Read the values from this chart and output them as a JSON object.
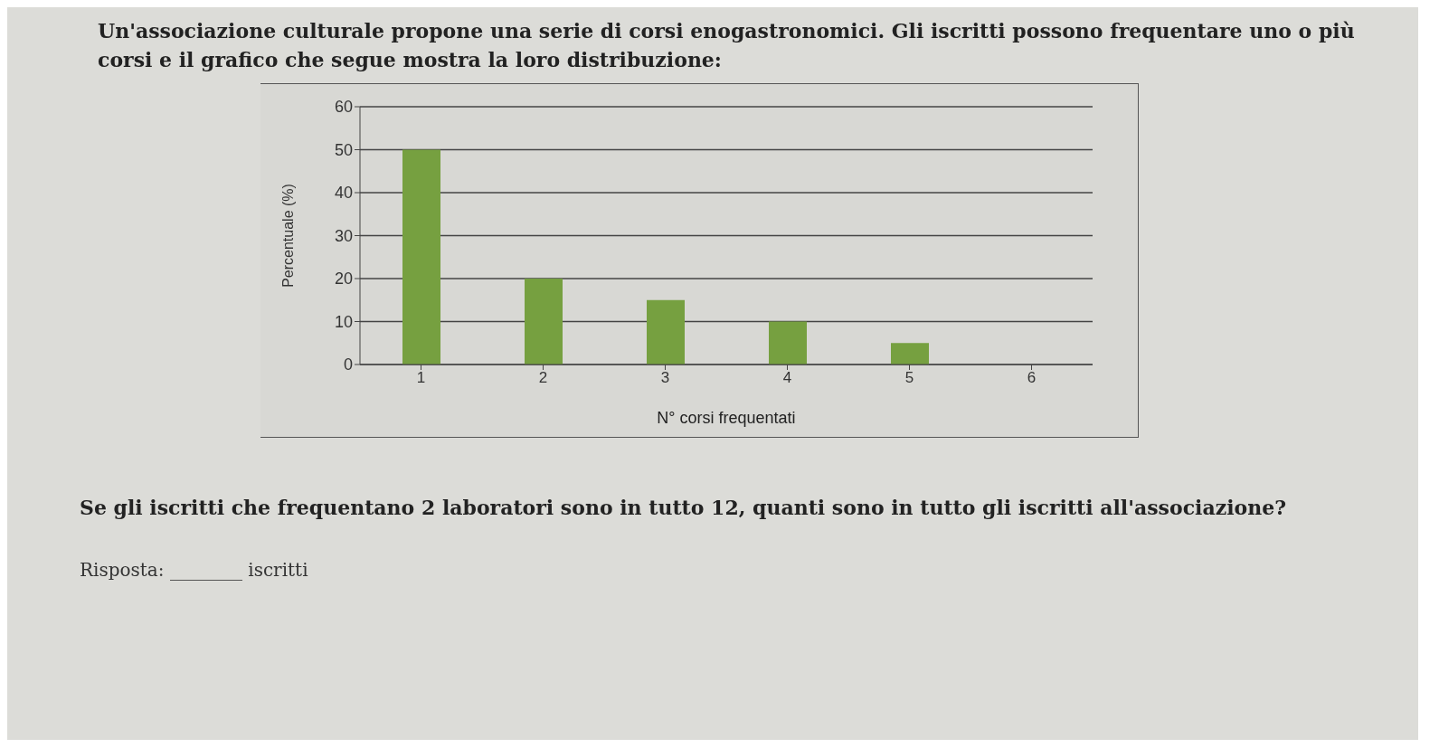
{
  "chart_data": {
    "type": "bar",
    "title": "Un'associazione culturale propone una serie di corsi enogastronomici. Gli iscritti possono frequentare uno o più corsi e il grafico che segue mostra la loro distribuzione:",
    "xlabel": "N° corsi frequentati",
    "ylabel": "Percentuale (%)",
    "categories": [
      "1",
      "2",
      "3",
      "4",
      "5",
      "6"
    ],
    "values": [
      50,
      20,
      15,
      10,
      5,
      0
    ],
    "color": "#76a040",
    "ylim": [
      0,
      60
    ],
    "yticks": [
      0,
      10,
      20,
      30,
      40,
      50,
      60
    ],
    "grid": "y",
    "annotations": [
      "Se gli iscritti che frequentano 2 laboratori sono in tutto 12, quanti sono in tutto gli iscritti all'associazione?",
      "Risposta: ________ iscritti"
    ]
  }
}
